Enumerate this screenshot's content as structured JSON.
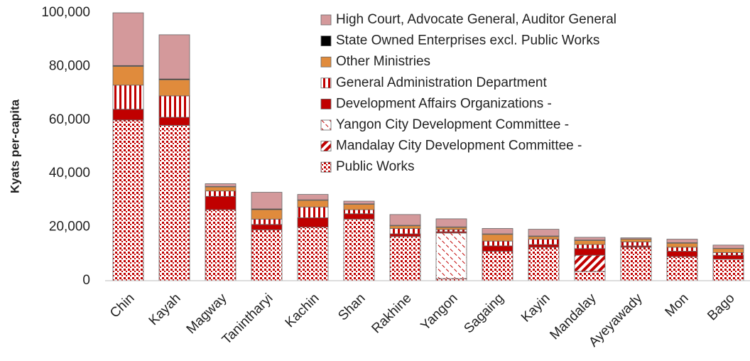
{
  "chart_data": {
    "type": "stacked_bar",
    "y_label": "Kyats per-capita",
    "categories": [
      "Chin",
      "Kayah",
      "Magway",
      "Tanintharyi",
      "Kachin",
      "Shan",
      "Rakhine",
      "Yangon",
      "Sagaing",
      "Kayin",
      "Mandalay",
      "Ayeyawady",
      "Mon",
      "Bago"
    ],
    "series": [
      {
        "name": "Public Works",
        "color": "#c00000",
        "pattern": "dots",
        "values": [
          60000,
          58000,
          26500,
          19000,
          20000,
          23000,
          16500,
          800,
          11000,
          12500,
          3500,
          12500,
          9000,
          8000
        ]
      },
      {
        "name": "Mandalay City Development Committee  -",
        "color": "#c00000",
        "pattern": "diagonal-stripes",
        "values": [
          0,
          0,
          0,
          0,
          0,
          0,
          0,
          0,
          0,
          0,
          6000,
          0,
          0,
          0
        ]
      },
      {
        "name": "Yangon City Development Committee  -",
        "color": "#c00000",
        "pattern": "diagonal-dashes",
        "values": [
          0,
          0,
          0,
          0,
          0,
          0,
          0,
          17000,
          0,
          0,
          0,
          0,
          0,
          0
        ]
      },
      {
        "name": "Development Affairs Organizations  -",
        "color": "#c00000",
        "pattern": "solid",
        "values": [
          4000,
          3000,
          5000,
          2000,
          3500,
          2000,
          1000,
          500,
          2000,
          1000,
          2500,
          500,
          2000,
          1500
        ]
      },
      {
        "name": "General Administration Department",
        "color": "#c00000",
        "pattern": "vertical-stripes",
        "values": [
          9000,
          8000,
          2000,
          2000,
          4000,
          1500,
          2000,
          800,
          1800,
          2000,
          1500,
          1500,
          1500,
          1000
        ]
      },
      {
        "name": "Other Ministries",
        "color": "#e08b3c",
        "pattern": "solid",
        "values": [
          7000,
          6000,
          1500,
          3500,
          2500,
          2000,
          1000,
          800,
          2500,
          1000,
          1500,
          1000,
          1500,
          1500
        ]
      },
      {
        "name": "State Owned Enterprises excl. Public Works",
        "color": "#000000",
        "pattern": "solid",
        "values": [
          300,
          300,
          200,
          300,
          200,
          200,
          200,
          200,
          200,
          200,
          200,
          100,
          200,
          100
        ]
      },
      {
        "name": "High Court, Advocate General, Auditor General",
        "color": "#d4999b",
        "pattern": "solid",
        "values": [
          19700,
          16500,
          1000,
          6200,
          2000,
          1000,
          4000,
          3000,
          2000,
          2500,
          1000,
          400,
          1300,
          1200
        ]
      }
    ],
    "ylim": [
      0,
      100000
    ],
    "yticks": [
      0,
      {
        "value": 20000,
        "label": "20,000"
      },
      {
        "value": 40000,
        "label": "40,000"
      },
      {
        "value": 60000,
        "label": "60,000"
      },
      {
        "value": 80000,
        "label": "80,000"
      },
      {
        "value": 100000,
        "label": "100,000"
      }
    ],
    "grid": false,
    "legend": "upper right"
  }
}
